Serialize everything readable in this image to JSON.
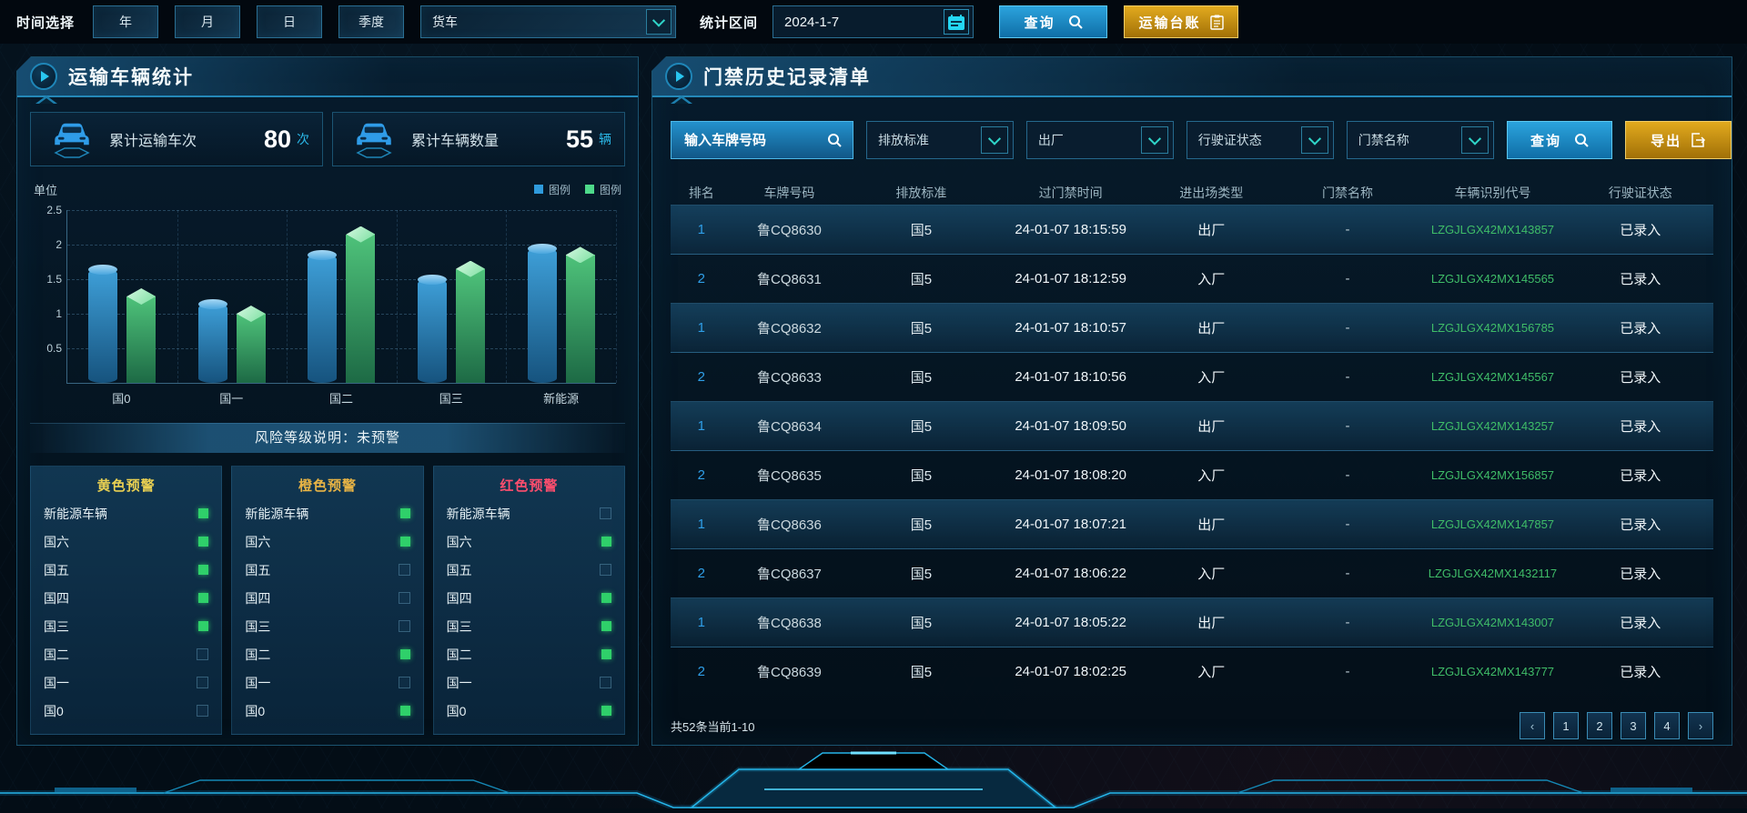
{
  "topbar": {
    "time_label": "时间选择",
    "time_buttons": [
      "年",
      "月",
      "日",
      "季度"
    ],
    "vehicle_type_value": "货车",
    "range_label": "统计区间",
    "date_value": "2024-1-7",
    "query_button": "查询",
    "ledger_button": "运输台账"
  },
  "left_panel": {
    "title": "运输车辆统计",
    "stats": [
      {
        "label": "累计运输车次",
        "value": "80",
        "unit": "次"
      },
      {
        "label": "累计车辆数量",
        "value": "55",
        "unit": "辆"
      }
    ],
    "chart": {
      "unit_label": "单位",
      "y_ticks": [
        2.5,
        2,
        1.5,
        1,
        0.5
      ],
      "chart_data": {
        "type": "bar",
        "categories": [
          "国0",
          "国一",
          "国二",
          "国三",
          "新能源"
        ],
        "series": [
          {
            "name": "图例",
            "color": "#2f9bdc",
            "values": [
              1.65,
              1.15,
              1.85,
              1.5,
              1.95
            ]
          },
          {
            "name": "图例",
            "color": "#4ed98a",
            "values": [
              1.25,
              1.0,
              2.15,
              1.65,
              1.85
            ]
          }
        ],
        "ylabel": "单位",
        "ylim": [
          0,
          2.5
        ],
        "grid": true,
        "legend_position": "top-right"
      }
    },
    "risk_banner": "风险等级说明：未预警",
    "warning_columns": [
      {
        "title": "黄色预警",
        "color": "#e9d052",
        "items": [
          {
            "label": "新能源车辆",
            "active": true
          },
          {
            "label": "国六",
            "active": true
          },
          {
            "label": "国五",
            "active": true
          },
          {
            "label": "国四",
            "active": true
          },
          {
            "label": "国三",
            "active": true
          },
          {
            "label": "国二",
            "active": false
          },
          {
            "label": "国一",
            "active": false
          },
          {
            "label": "国0",
            "active": false
          }
        ]
      },
      {
        "title": "橙色预警",
        "color": "#e8b445",
        "items": [
          {
            "label": "新能源车辆",
            "active": true
          },
          {
            "label": "国六",
            "active": true
          },
          {
            "label": "国五",
            "active": false
          },
          {
            "label": "国四",
            "active": false
          },
          {
            "label": "国三",
            "active": false
          },
          {
            "label": "国二",
            "active": true
          },
          {
            "label": "国一",
            "active": false
          },
          {
            "label": "国0",
            "active": true
          }
        ]
      },
      {
        "title": "红色预警",
        "color": "#ff4e6e",
        "items": [
          {
            "label": "新能源车辆",
            "active": false
          },
          {
            "label": "国六",
            "active": true
          },
          {
            "label": "国五",
            "active": false
          },
          {
            "label": "国四",
            "active": true
          },
          {
            "label": "国三",
            "active": true
          },
          {
            "label": "国二",
            "active": true
          },
          {
            "label": "国一",
            "active": false
          },
          {
            "label": "国0",
            "active": true
          }
        ]
      }
    ]
  },
  "right_panel": {
    "title": "门禁历史记录清单",
    "filters": {
      "plate_placeholder": "输入车牌号码",
      "dropdowns": [
        "排放标准",
        "出厂",
        "行驶证状态",
        "门禁名称"
      ],
      "query_button": "查询",
      "export_button": "导出"
    },
    "table": {
      "headers": [
        "排名",
        "车牌号码",
        "排放标准",
        "过门禁时间",
        "进出场类型",
        "门禁名称",
        "车辆识别代号",
        "行驶证状态"
      ],
      "rows": [
        {
          "rank": "1",
          "plate": "鲁CQ8630",
          "standard": "国5",
          "time": "24-01-07 18:15:59",
          "type": "出厂",
          "gate": "-",
          "vin": "LZGJLGX42MX143857",
          "license": "已录入",
          "highlight": true
        },
        {
          "rank": "2",
          "plate": "鲁CQ8631",
          "standard": "国5",
          "time": "24-01-07 18:12:59",
          "type": "入厂",
          "gate": "-",
          "vin": "LZGJLGX42MX145565",
          "license": "已录入",
          "highlight": false
        },
        {
          "rank": "1",
          "plate": "鲁CQ8632",
          "standard": "国5",
          "time": "24-01-07 18:10:57",
          "type": "出厂",
          "gate": "-",
          "vin": "LZGJLGX42MX156785",
          "license": "已录入",
          "highlight": true
        },
        {
          "rank": "2",
          "plate": "鲁CQ8633",
          "standard": "国5",
          "time": "24-01-07 18:10:56",
          "type": "入厂",
          "gate": "-",
          "vin": "LZGJLGX42MX145567",
          "license": "已录入",
          "highlight": false
        },
        {
          "rank": "1",
          "plate": "鲁CQ8634",
          "standard": "国5",
          "time": "24-01-07 18:09:50",
          "type": "出厂",
          "gate": "-",
          "vin": "LZGJLGX42MX143257",
          "license": "已录入",
          "highlight": true
        },
        {
          "rank": "2",
          "plate": "鲁CQ8635",
          "standard": "国5",
          "time": "24-01-07 18:08:20",
          "type": "入厂",
          "gate": "-",
          "vin": "LZGJLGX42MX156857",
          "license": "已录入",
          "highlight": false
        },
        {
          "rank": "1",
          "plate": "鲁CQ8636",
          "standard": "国5",
          "time": "24-01-07 18:07:21",
          "type": "出厂",
          "gate": "-",
          "vin": "LZGJLGX42MX147857",
          "license": "已录入",
          "highlight": true
        },
        {
          "rank": "2",
          "plate": "鲁CQ8637",
          "standard": "国5",
          "time": "24-01-07 18:06:22",
          "type": "入厂",
          "gate": "-",
          "vin": "LZGJLGX42MX1432117",
          "license": "已录入",
          "highlight": false
        },
        {
          "rank": "1",
          "plate": "鲁CQ8638",
          "standard": "国5",
          "time": "24-01-07 18:05:22",
          "type": "出厂",
          "gate": "-",
          "vin": "LZGJLGX42MX143007",
          "license": "已录入",
          "highlight": true
        },
        {
          "rank": "2",
          "plate": "鲁CQ8639",
          "standard": "国5",
          "time": "24-01-07 18:02:25",
          "type": "入厂",
          "gate": "-",
          "vin": "LZGJLGX42MX143777",
          "license": "已录入",
          "highlight": false
        }
      ]
    },
    "footer": {
      "summary": "共52条当前1-10",
      "prev": "‹",
      "pages": [
        "1",
        "2",
        "3",
        "4"
      ],
      "next": "›"
    }
  },
  "colors": {
    "accent_cyan": "#29c6f0",
    "button_blue": "#1e96d2",
    "button_gold": "#d99a16",
    "rank_blue": "#2f9fe8",
    "vin_green": "#3fbd68",
    "indicator_green": "#2fd06a"
  }
}
